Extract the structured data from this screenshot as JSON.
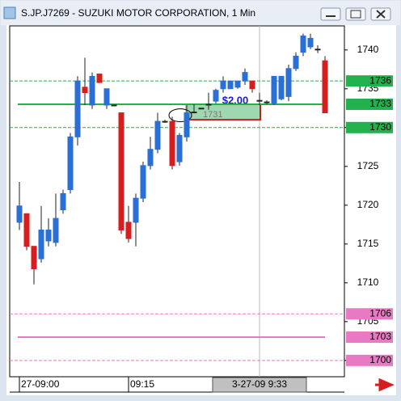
{
  "window_title": "S.JP.J7269 - SUZUKI MOTOR CORPORATION, 1 Min",
  "chart_data": {
    "type": "candlestick",
    "x": [
      "27-09:00",
      null,
      null,
      null,
      null,
      null,
      null,
      null,
      null,
      null,
      null,
      null,
      null,
      null,
      null,
      "09:15",
      null,
      null,
      null,
      null,
      null,
      null,
      null,
      null,
      null,
      null,
      null,
      null,
      null,
      null,
      null,
      null,
      null,
      "3-27-09  9:33",
      null,
      null,
      null,
      null,
      null,
      null,
      null,
      null,
      null
    ],
    "open": [
      1717.8,
      1718.9,
      1714.7,
      1713.1,
      1715.4,
      1715.2,
      1719.4,
      1722.0,
      1728.8,
      1735.2,
      1732.9,
      1736.9,
      1732.9,
      1732.9,
      1731.9,
      1717.8,
      1717.8,
      1720.9,
      1725.1,
      1727.2,
      1730.8,
      1730.8,
      1725.6,
      1728.8,
      1732.0,
      1732.5,
      1733.0,
      1733.4,
      1735.0,
      1735.0,
      1735.2,
      1736.0,
      1736.0,
      1733.5,
      1733.3,
      1733.1,
      1733.7,
      1734.0,
      1737.6,
      1739.7,
      1740.4,
      1740.1,
      1738.6
    ],
    "high": [
      1723.0,
      1718.9,
      1714.7,
      1719.9,
      1718.3,
      1721.5,
      1722.0,
      1729.3,
      1736.6,
      1739.0,
      1737.1,
      1736.9,
      1735.0,
      1732.9,
      1731.9,
      1719.9,
      1721.5,
      1725.6,
      1728.8,
      1731.9,
      1731.0,
      1731.4,
      1729.3,
      1732.9,
      1733.0,
      1732.5,
      1734.5,
      1735.0,
      1736.6,
      1736.0,
      1736.0,
      1737.6,
      1736.0,
      1734.5,
      1733.5,
      1736.6,
      1736.6,
      1738.1,
      1739.7,
      1742.1,
      1742.1,
      1740.6,
      1739.2
    ],
    "low": [
      1716.8,
      1714.2,
      1709.8,
      1712.6,
      1714.7,
      1714.7,
      1718.9,
      1721.5,
      1727.7,
      1732.9,
      1732.4,
      1735.8,
      1732.4,
      1732.9,
      1716.3,
      1715.2,
      1714.7,
      1720.4,
      1724.6,
      1726.7,
      1730.6,
      1724.6,
      1725.1,
      1728.2,
      1732.0,
      1732.5,
      1732.3,
      1733.1,
      1734.5,
      1735.0,
      1735.0,
      1735.5,
      1734.5,
      1732.9,
      1733.0,
      1732.9,
      1733.5,
      1733.4,
      1737.3,
      1739.2,
      1740.1,
      1739.6,
      1731.9
    ],
    "close": [
      1719.9,
      1714.7,
      1711.8,
      1716.8,
      1716.8,
      1718.3,
      1721.5,
      1728.8,
      1736.0,
      1734.5,
      1736.6,
      1735.8,
      1735.0,
      1732.9,
      1716.8,
      1715.7,
      1720.9,
      1725.1,
      1727.2,
      1730.8,
      1730.8,
      1725.1,
      1729.0,
      1731.9,
      1732.0,
      1732.5,
      1733.0,
      1734.8,
      1736.0,
      1736.0,
      1736.0,
      1737.1,
      1735.0,
      1733.5,
      1733.3,
      1736.6,
      1736.6,
      1737.6,
      1739.2,
      1741.8,
      1741.5,
      1740.1,
      1731.9
    ],
    "up_color": "#2a6fd6",
    "down_color": "#d61e1e",
    "ylim": [
      1697.9,
      1743.1
    ],
    "yticks": [
      1700,
      1705,
      1710,
      1715,
      1720,
      1725,
      1730,
      1735,
      1740
    ],
    "levels": [
      {
        "value": 1736,
        "color": "#22b14c",
        "style": "dashed"
      },
      {
        "value": 1733,
        "color": "#22b14c",
        "style": "solid"
      },
      {
        "value": 1730,
        "color": "#22b14c",
        "style": "dashed"
      },
      {
        "value": 1706,
        "color": "#e87ac4",
        "style": "dashed"
      },
      {
        "value": 1703,
        "color": "#e87ac4",
        "style": "solid"
      },
      {
        "value": 1700,
        "color": "#e87ac4",
        "style": "dashed"
      }
    ],
    "trade": {
      "entry": 1731,
      "exit": 1733,
      "profit": "$2.00"
    }
  }
}
